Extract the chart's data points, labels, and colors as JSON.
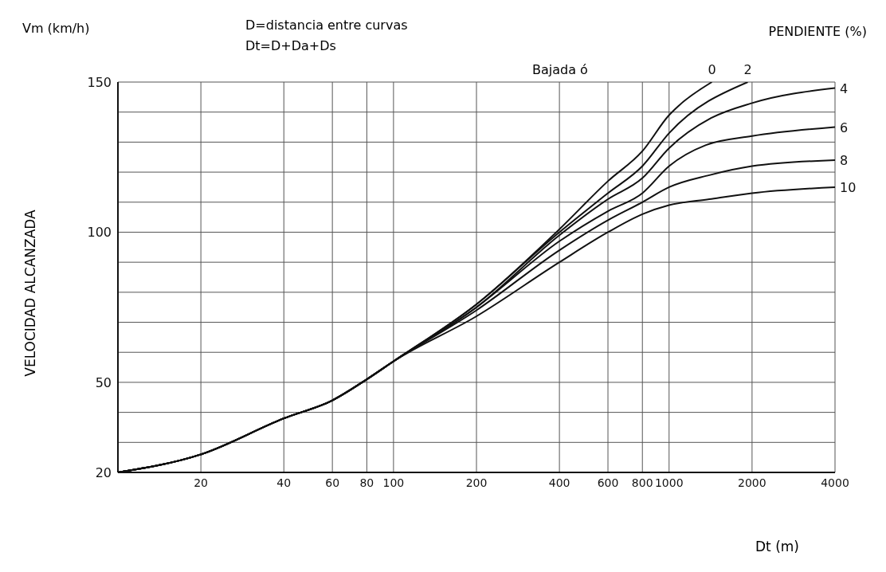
{
  "chart_data": {
    "type": "line",
    "ylabel": "VELOCIDAD ALCANZADA",
    "xlabel": "Dt (m)",
    "legend_title": "PENDIENTE (%)",
    "annotations": [
      "Vm (km/h)",
      "D=distancia entre curvas",
      "Dt=D+Da+Ds",
      "Bajada ó"
    ],
    "log": "x",
    "grid": true,
    "marker": "none",
    "line_style": "solid",
    "xlim": [
      10,
      4000
    ],
    "xticks": [
      20,
      40,
      60,
      80,
      100,
      200,
      400,
      600,
      800,
      1000,
      2000,
      4000
    ],
    "ylim": [
      20,
      150
    ],
    "yticks": [
      20,
      {
        "value": 30,
        "label": null
      },
      {
        "value": 40,
        "label": null
      },
      50,
      {
        "value": 60,
        "label": null
      },
      {
        "value": 70,
        "label": null
      },
      {
        "value": 80,
        "label": null
      },
      {
        "value": 90,
        "label": null
      },
      100,
      {
        "value": 110,
        "label": null
      },
      {
        "value": 120,
        "label": null
      },
      {
        "value": 130,
        "label": null
      },
      {
        "value": 140,
        "label": null
      },
      150
    ],
    "series": [
      {
        "name": "0",
        "color": "#111111",
        "x": [
          10,
          20,
          40,
          60,
          80,
          100,
          200,
          400,
          600,
          800,
          1000,
          1080,
          1430
        ],
        "values": [
          20,
          26,
          38,
          44,
          51,
          57,
          76,
          101,
          117,
          127,
          139,
          142,
          150
        ]
      },
      {
        "name": "2",
        "color": "#111111",
        "x": [
          10,
          20,
          40,
          60,
          80,
          100,
          200,
          400,
          600,
          800,
          1000,
          1930
        ],
        "values": [
          20,
          26,
          38,
          44,
          51,
          57,
          76,
          100,
          113,
          122,
          133,
          150
        ]
      },
      {
        "name": "4",
        "color": "#111111",
        "x": [
          10,
          20,
          40,
          60,
          80,
          100,
          200,
          400,
          600,
          800,
          1000,
          1420,
          2000,
          4000
        ],
        "values": [
          20,
          26,
          38,
          44,
          51,
          57,
          75,
          99,
          111,
          118,
          128,
          138,
          143,
          148
        ]
      },
      {
        "name": "6",
        "color": "#111111",
        "x": [
          10,
          20,
          40,
          60,
          80,
          100,
          200,
          400,
          600,
          800,
          1000,
          1360,
          2000,
          4000
        ],
        "values": [
          20,
          26,
          38,
          44,
          51,
          57,
          75,
          97,
          107,
          113,
          122,
          129,
          132,
          135
        ]
      },
      {
        "name": "8",
        "color": "#111111",
        "x": [
          10,
          20,
          40,
          60,
          80,
          100,
          200,
          400,
          600,
          800,
          1000,
          1400,
          2000,
          4000
        ],
        "values": [
          20,
          26,
          38,
          44,
          51,
          57,
          74,
          94,
          104,
          110,
          115,
          119,
          122,
          124
        ]
      },
      {
        "name": "10",
        "color": "#111111",
        "x": [
          10,
          20,
          40,
          60,
          80,
          100,
          200,
          400,
          600,
          800,
          1000,
          1400,
          2000,
          4000
        ],
        "values": [
          20,
          26,
          38,
          44,
          51,
          57,
          72,
          90,
          100,
          106,
          109,
          111,
          113,
          115
        ]
      }
    ]
  }
}
